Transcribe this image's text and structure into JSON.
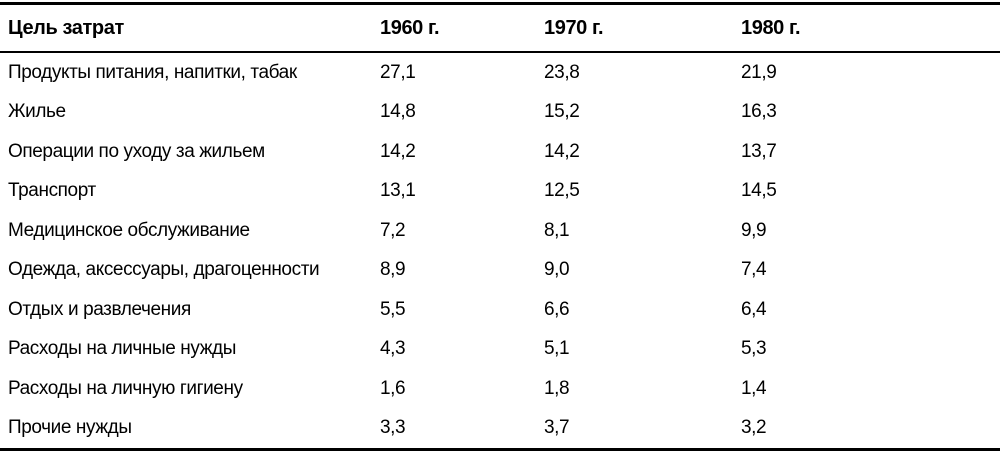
{
  "chart_data": {
    "type": "table",
    "title": "",
    "columns": [
      "Цель затрат",
      "1960 г.",
      "1970 г.",
      "1980 г."
    ],
    "rows": [
      {
        "label": "Продукты питания, напитки, табак",
        "values": [
          27.1,
          23.8,
          21.9
        ]
      },
      {
        "label": "Жилье",
        "values": [
          14.8,
          15.2,
          16.3
        ]
      },
      {
        "label": "Операции по уходу за жильем",
        "values": [
          14.2,
          14.2,
          13.7
        ]
      },
      {
        "label": "Транспорт",
        "values": [
          13.1,
          12.5,
          14.5
        ]
      },
      {
        "label": "Медицинское обслуживание",
        "values": [
          7.2,
          8.1,
          9.9
        ]
      },
      {
        "label": "Одежда, аксессуары, драгоценности",
        "values": [
          8.9,
          9.0,
          7.4
        ]
      },
      {
        "label": "Отдых и развлечения",
        "values": [
          5.5,
          6.6,
          6.4
        ]
      },
      {
        "label": "Расходы на личные нужды",
        "values": [
          4.3,
          5.1,
          5.3
        ]
      },
      {
        "label": "Расходы на личную гигиену",
        "values": [
          1.6,
          1.8,
          1.4
        ]
      },
      {
        "label": "Прочие нужды",
        "values": [
          3.3,
          3.7,
          3.2
        ]
      }
    ]
  },
  "table": {
    "header": [
      "Цель затрат",
      "1960 г.",
      "1970 г.",
      "1980 г."
    ],
    "rows": [
      {
        "label": "Продукты питания, напитки, табак",
        "cells": [
          "27,1",
          "23,8",
          "21,9"
        ]
      },
      {
        "label": "Жилье",
        "cells": [
          "14,8",
          "15,2",
          "16,3"
        ]
      },
      {
        "label": "Операции по уходу за жильем",
        "cells": [
          "14,2",
          "14,2",
          "13,7"
        ]
      },
      {
        "label": "Транспорт",
        "cells": [
          "13,1",
          "12,5",
          "14,5"
        ]
      },
      {
        "label": "Медицинское обслуживание",
        "cells": [
          "7,2",
          "8,1",
          "9,9"
        ]
      },
      {
        "label": "Одежда, аксессуары, драгоценности",
        "cells": [
          "8,9",
          "9,0",
          "7,4"
        ]
      },
      {
        "label": "Отдых и развлечения",
        "cells": [
          "5,5",
          "6,6",
          "6,4"
        ]
      },
      {
        "label": "Расходы на личные нужды",
        "cells": [
          "4,3",
          "5,1",
          "5,3"
        ]
      },
      {
        "label": "Расходы на личную гигиену",
        "cells": [
          "1,6",
          "1,8",
          "1,4"
        ]
      },
      {
        "label": "Прочие нужды",
        "cells": [
          "3,3",
          "3,7",
          "3,2"
        ]
      }
    ]
  },
  "colors": {
    "text": "#000000",
    "background": "#ffffff",
    "rule": "#000000"
  }
}
